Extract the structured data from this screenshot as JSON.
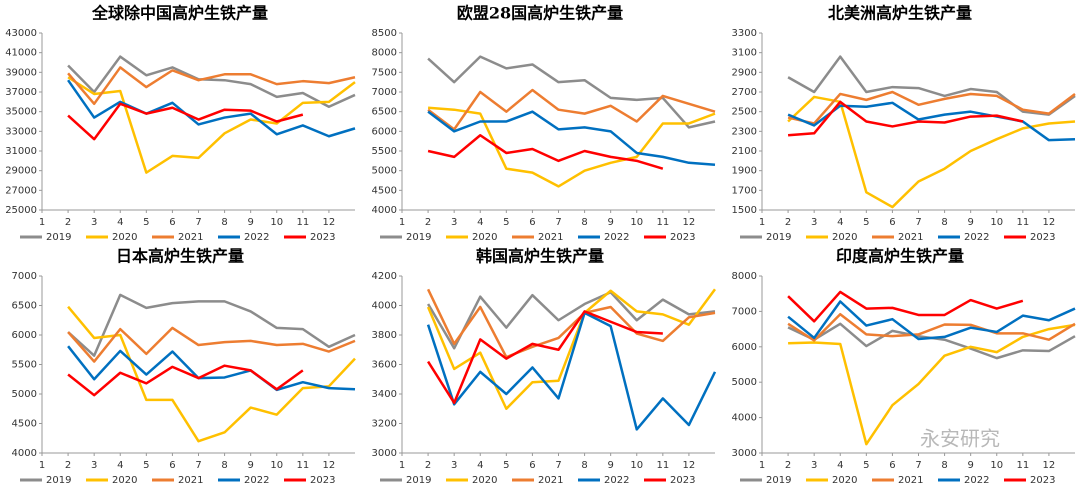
{
  "chart_data": [
    {
      "type": "line",
      "title": "全球除中国高炉生铁产量",
      "x": [
        2,
        3,
        4,
        5,
        6,
        7,
        8,
        9,
        10,
        11,
        12,
        13
      ],
      "xlim": [
        1,
        13
      ],
      "xticks": [
        1,
        2,
        3,
        4,
        5,
        6,
        7,
        8,
        9,
        10,
        11,
        12
      ],
      "ylim": [
        25000,
        43000
      ],
      "yticks": [
        25000,
        27000,
        29000,
        31000,
        33000,
        35000,
        37000,
        39000,
        41000,
        43000
      ],
      "series": [
        {
          "name": "2019",
          "color": "#8c8c8c",
          "values": [
            39700,
            37000,
            40600,
            38700,
            39500,
            38300,
            38200,
            37800,
            36500,
            36900,
            35500,
            36700
          ]
        },
        {
          "name": "2020",
          "color": "#ffc000",
          "values": [
            38500,
            36800,
            37100,
            28800,
            30500,
            30300,
            32800,
            34200,
            33800,
            35900,
            36000,
            38000
          ]
        },
        {
          "name": "2021",
          "color": "#ed7d31",
          "values": [
            38900,
            35800,
            39500,
            37500,
            39200,
            38200,
            38800,
            38800,
            37800,
            38100,
            37900,
            38500
          ]
        },
        {
          "name": "2022",
          "color": "#0070c0",
          "values": [
            38200,
            34400,
            36000,
            34800,
            35900,
            33700,
            34400,
            34800,
            32700,
            33600,
            32500,
            33300
          ]
        },
        {
          "name": "2023",
          "color": "#ff0000",
          "values": [
            34600,
            32200,
            35800,
            34800,
            35400,
            34200,
            35200,
            35100,
            34000,
            34700,
            null,
            null
          ]
        }
      ]
    },
    {
      "type": "line",
      "title": "欧盟28国高炉生铁产量",
      "x": [
        2,
        3,
        4,
        5,
        6,
        7,
        8,
        9,
        10,
        11,
        12,
        13
      ],
      "xlim": [
        1,
        13
      ],
      "xticks": [
        1,
        2,
        3,
        4,
        5,
        6,
        7,
        8,
        9,
        10,
        11,
        12
      ],
      "ylim": [
        4000,
        8500
      ],
      "yticks": [
        4000,
        4500,
        5000,
        5500,
        6000,
        6500,
        7000,
        7500,
        8000,
        8500
      ],
      "series": [
        {
          "name": "2019",
          "color": "#8c8c8c",
          "values": [
            7850,
            7250,
            7900,
            7600,
            7700,
            7250,
            7300,
            6850,
            6800,
            6850,
            6100,
            6250
          ]
        },
        {
          "name": "2020",
          "color": "#ffc000",
          "values": [
            6600,
            6550,
            6450,
            5050,
            4950,
            4600,
            5000,
            5200,
            5350,
            6200,
            6200,
            6450
          ]
        },
        {
          "name": "2021",
          "color": "#ed7d31",
          "values": [
            6550,
            6050,
            7000,
            6500,
            7050,
            6550,
            6450,
            6650,
            6250,
            6900,
            6700,
            6500
          ]
        },
        {
          "name": "2022",
          "color": "#0070c0",
          "values": [
            6500,
            6000,
            6250,
            6250,
            6500,
            6050,
            6100,
            6000,
            5450,
            5350,
            5200,
            5150
          ]
        },
        {
          "name": "2023",
          "color": "#ff0000",
          "values": [
            5500,
            5350,
            5900,
            5450,
            5550,
            5250,
            5500,
            5350,
            5250,
            5050,
            null,
            null
          ]
        }
      ]
    },
    {
      "type": "line",
      "title": "北美洲高炉生铁产量",
      "x": [
        2,
        3,
        4,
        5,
        6,
        7,
        8,
        9,
        10,
        11,
        12,
        13
      ],
      "xlim": [
        1,
        13
      ],
      "xticks": [
        1,
        2,
        3,
        4,
        5,
        6,
        7,
        8,
        9,
        10,
        11,
        12
      ],
      "ylim": [
        1500,
        3300
      ],
      "yticks": [
        1500,
        1700,
        1900,
        2100,
        2300,
        2500,
        2700,
        2900,
        3100,
        3300
      ],
      "series": [
        {
          "name": "2019",
          "color": "#8c8c8c",
          "values": [
            2850,
            2700,
            3060,
            2700,
            2750,
            2740,
            2660,
            2730,
            2700,
            2500,
            2470,
            2660
          ]
        },
        {
          "name": "2020",
          "color": "#ffc000",
          "values": [
            2400,
            2650,
            2600,
            1680,
            1530,
            1790,
            1920,
            2100,
            2220,
            2330,
            2380,
            2400
          ]
        },
        {
          "name": "2021",
          "color": "#ed7d31",
          "values": [
            2440,
            2380,
            2680,
            2620,
            2700,
            2570,
            2630,
            2680,
            2660,
            2520,
            2480,
            2680
          ]
        },
        {
          "name": "2022",
          "color": "#0070c0",
          "values": [
            2470,
            2360,
            2560,
            2550,
            2590,
            2420,
            2470,
            2500,
            2450,
            2400,
            2210,
            2220
          ]
        },
        {
          "name": "2023",
          "color": "#ff0000",
          "values": [
            2260,
            2280,
            2600,
            2400,
            2350,
            2400,
            2390,
            2450,
            2460,
            2400,
            null,
            null
          ]
        }
      ]
    },
    {
      "type": "line",
      "title": "日本高炉生铁产量",
      "x": [
        2,
        3,
        4,
        5,
        6,
        7,
        8,
        9,
        10,
        11,
        12,
        13
      ],
      "xlim": [
        1,
        13
      ],
      "xticks": [
        1,
        2,
        3,
        4,
        5,
        6,
        7,
        8,
        9,
        10,
        11,
        12
      ],
      "ylim": [
        4000,
        7000
      ],
      "yticks": [
        4000,
        4500,
        5000,
        5500,
        6000,
        6500,
        7000
      ],
      "series": [
        {
          "name": "2019",
          "color": "#8c8c8c",
          "values": [
            6050,
            5650,
            6680,
            6460,
            6540,
            6570,
            6570,
            6400,
            6120,
            6100,
            5800,
            6000
          ]
        },
        {
          "name": "2020",
          "color": "#ffc000",
          "values": [
            6480,
            5950,
            6000,
            4900,
            4900,
            4200,
            4350,
            4770,
            4650,
            5100,
            5130,
            5600
          ]
        },
        {
          "name": "2021",
          "color": "#ed7d31",
          "values": [
            6050,
            5550,
            6100,
            5680,
            6120,
            5830,
            5880,
            5900,
            5830,
            5850,
            5720,
            5900
          ]
        },
        {
          "name": "2022",
          "color": "#0070c0",
          "values": [
            5810,
            5250,
            5730,
            5330,
            5720,
            5270,
            5280,
            5400,
            5070,
            5200,
            5100,
            5080
          ]
        },
        {
          "name": "2023",
          "color": "#ff0000",
          "values": [
            5330,
            4980,
            5360,
            5180,
            5460,
            5270,
            5480,
            5400,
            5080,
            5400,
            null,
            null
          ]
        }
      ]
    },
    {
      "type": "line",
      "title": "韩国高炉生铁产量",
      "x": [
        2,
        3,
        4,
        5,
        6,
        7,
        8,
        9,
        10,
        11,
        12,
        13
      ],
      "xlim": [
        1,
        13
      ],
      "xticks": [
        1,
        2,
        3,
        4,
        5,
        6,
        7,
        8,
        9,
        10,
        11,
        12
      ],
      "ylim": [
        3000,
        4200
      ],
      "yticks": [
        3000,
        3200,
        3400,
        3600,
        3800,
        4000,
        4200
      ],
      "series": [
        {
          "name": "2019",
          "color": "#8c8c8c",
          "values": [
            4010,
            3710,
            4060,
            3850,
            4070,
            3900,
            4010,
            4090,
            3900,
            4040,
            3940,
            3960
          ]
        },
        {
          "name": "2020",
          "color": "#ffc000",
          "values": [
            3990,
            3570,
            3680,
            3300,
            3480,
            3490,
            3950,
            4100,
            3960,
            3940,
            3870,
            4110
          ]
        },
        {
          "name": "2021",
          "color": "#ed7d31",
          "values": [
            4110,
            3740,
            3990,
            3650,
            3720,
            3780,
            3950,
            3990,
            3810,
            3760,
            3920,
            3950
          ]
        },
        {
          "name": "2022",
          "color": "#0070c0",
          "values": [
            3870,
            3330,
            3550,
            3400,
            3580,
            3370,
            3950,
            3860,
            3160,
            3370,
            3190,
            3550
          ]
        },
        {
          "name": "2023",
          "color": "#ff0000",
          "values": [
            3620,
            3340,
            3770,
            3640,
            3740,
            3700,
            3960,
            3890,
            3820,
            3810,
            null,
            null
          ]
        }
      ]
    },
    {
      "type": "line",
      "title": "印度高炉生铁产量",
      "x": [
        2,
        3,
        4,
        5,
        6,
        7,
        8,
        9,
        10,
        11,
        12,
        13
      ],
      "xlim": [
        1,
        13
      ],
      "xticks": [
        1,
        2,
        3,
        4,
        5,
        6,
        7,
        8,
        9,
        10,
        11,
        12
      ],
      "ylim": [
        3000,
        8000
      ],
      "yticks": [
        3000,
        4000,
        5000,
        6000,
        7000,
        8000
      ],
      "series": [
        {
          "name": "2019",
          "color": "#8c8c8c",
          "values": [
            6550,
            6200,
            6650,
            6020,
            6450,
            6300,
            6200,
            5950,
            5680,
            5900,
            5880,
            6300
          ]
        },
        {
          "name": "2020",
          "color": "#ffc000",
          "values": [
            6100,
            6120,
            6080,
            3250,
            4350,
            4950,
            5750,
            6000,
            5850,
            6280,
            6500,
            6620
          ]
        },
        {
          "name": "2021",
          "color": "#ed7d31",
          "values": [
            6650,
            6180,
            6920,
            6350,
            6300,
            6350,
            6630,
            6620,
            6380,
            6380,
            6200,
            6650
          ]
        },
        {
          "name": "2022",
          "color": "#0070c0",
          "values": [
            6850,
            6250,
            7280,
            6600,
            6780,
            6220,
            6280,
            6540,
            6420,
            6880,
            6750,
            7080
          ]
        },
        {
          "name": "2023",
          "color": "#ff0000",
          "values": [
            7430,
            6720,
            7550,
            7080,
            7100,
            6900,
            6900,
            7320,
            7080,
            7300,
            null,
            null
          ]
        }
      ]
    }
  ],
  "watermark": "永安研究"
}
